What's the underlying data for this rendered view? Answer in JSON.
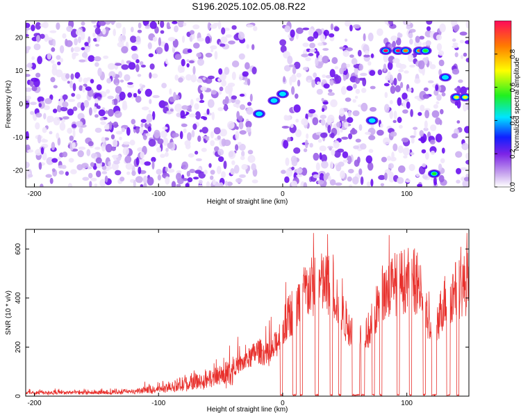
{
  "title": "S196.2025.102.05.08.R22",
  "chart_data": [
    {
      "type": "heatmap",
      "xlabel": "Height of straight line (km)",
      "ylabel": "Frequency (Hz)",
      "xlim": [
        -207,
        150
      ],
      "ylim": [
        -25,
        25
      ],
      "xticks": [
        -200,
        -100,
        0,
        100
      ],
      "yticks": [
        -20,
        -10,
        0,
        10,
        20
      ],
      "colorbar": {
        "label": "Normalized spectral amplitude",
        "range": [
          0,
          1
        ],
        "ticks": [
          0.0,
          0.2,
          0.4,
          0.6,
          0.8
        ]
      },
      "blank_bands_km": [
        [
          -22,
          0
        ],
        [
          73,
          78
        ],
        [
          130,
          138
        ]
      ],
      "features": [
        {
          "x": -19,
          "y": -3,
          "amp": 0.45
        },
        {
          "x": -7,
          "y": 1,
          "amp": 0.55
        },
        {
          "x": 0,
          "y": 3,
          "amp": 0.45
        },
        {
          "x": 72,
          "y": -5,
          "amp": 0.5
        },
        {
          "x": 83,
          "y": 16,
          "amp": 1.0
        },
        {
          "x": 93,
          "y": 16,
          "amp": 1.0
        },
        {
          "x": 99,
          "y": 16,
          "amp": 0.95
        },
        {
          "x": 110,
          "y": 16,
          "amp": 0.95
        },
        {
          "x": 115,
          "y": 16,
          "amp": 0.7
        },
        {
          "x": 122,
          "y": -21,
          "amp": 0.6
        },
        {
          "x": 131,
          "y": 8,
          "amp": 0.55
        },
        {
          "x": 140,
          "y": 2,
          "amp": 0.75
        },
        {
          "x": 147,
          "y": 2,
          "amp": 0.75
        }
      ]
    },
    {
      "type": "line",
      "xlabel": "Height of straight line (km)",
      "ylabel": "SNR (10 * v/v)",
      "xlim": [
        -207,
        150
      ],
      "ylim": [
        0,
        680
      ],
      "xticks": [
        -200,
        -100,
        0,
        100
      ],
      "yticks": [
        0,
        200,
        400,
        600
      ],
      "color": "#e8302c",
      "envelope": {
        "x": [
          -207,
          -150,
          -120,
          -100,
          -80,
          -60,
          -40,
          -30,
          -20,
          -10,
          0,
          5,
          10,
          15,
          20,
          30,
          40,
          50,
          60,
          70,
          80,
          90,
          100,
          110,
          120,
          130,
          140,
          150
        ],
        "y": [
          22,
          22,
          28,
          45,
          70,
          100,
          150,
          180,
          240,
          210,
          350,
          420,
          470,
          520,
          560,
          590,
          580,
          400,
          320,
          350,
          540,
          590,
          610,
          600,
          300,
          500,
          560,
          600
        ]
      },
      "drops": [
        [
          -2,
          0
        ],
        [
          8,
          11
        ],
        [
          14,
          16
        ],
        [
          26,
          29
        ],
        [
          38,
          40
        ],
        [
          45,
          47
        ],
        [
          56,
          62
        ],
        [
          63,
          66
        ],
        [
          72,
          74
        ],
        [
          78,
          80
        ],
        [
          92,
          94
        ],
        [
          102,
          104
        ],
        [
          113,
          115
        ],
        [
          120,
          124
        ],
        [
          132,
          135
        ],
        [
          140,
          142
        ]
      ]
    }
  ]
}
